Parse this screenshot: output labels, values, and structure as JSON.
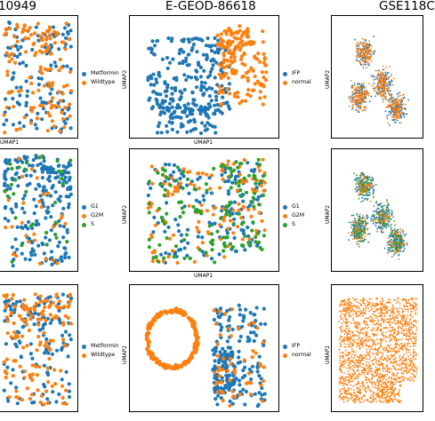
{
  "columns": [
    {
      "title": "10949"
    },
    {
      "title": "E-GEOD-86618"
    },
    {
      "title": "GSE118C"
    }
  ],
  "axis_labels": {
    "x": "UMAP1",
    "y": "UMAP2"
  },
  "colors": {
    "blue": "#1f77b4",
    "orange": "#ff7f0e",
    "green": "#2ca02c"
  },
  "chart_data": [
    {
      "type": "scatter",
      "title": "10949",
      "row": 1,
      "col": 1,
      "xlabel": "UMAP1",
      "ylabel": "",
      "legend": [],
      "shape": "left-blob",
      "series": [
        {
          "name": "Metformin",
          "color": "#1f77b4",
          "count": 130
        },
        {
          "name": "Wildtype",
          "color": "#ff7f0e",
          "count": 130
        }
      ]
    },
    {
      "type": "scatter",
      "title": "E-GEOD-86618",
      "row": 1,
      "col": 2,
      "xlabel": "UMAP1",
      "ylabel": "UMAP2",
      "legend": [
        "IFP",
        "normal"
      ],
      "shape": "two-lobes",
      "series": [
        {
          "name": "IFP",
          "color": "#1f77b4",
          "count": 300
        },
        {
          "name": "normal",
          "color": "#ff7f0e",
          "count": 170
        }
      ]
    },
    {
      "type": "scatter",
      "title": "GSE118C",
      "row": 1,
      "col": 3,
      "xlabel": "",
      "ylabel": "UMAP2",
      "legend": [],
      "shape": "cluster-mix",
      "series": [
        {
          "name": "",
          "color": "#1f77b4",
          "count": 500
        },
        {
          "name": "",
          "color": "#ff7f0e",
          "count": 500
        }
      ]
    },
    {
      "type": "scatter",
      "title": "",
      "row": 2,
      "col": 1,
      "xlabel": "",
      "ylabel": "",
      "legend": [],
      "shape": "left-blob",
      "series": [
        {
          "name": "G1",
          "color": "#1f77b4",
          "count": 220
        },
        {
          "name": "G2M",
          "color": "#ff7f0e",
          "count": 30
        },
        {
          "name": "S",
          "color": "#2ca02c",
          "count": 30
        }
      ]
    },
    {
      "type": "scatter",
      "title": "",
      "row": 2,
      "col": 2,
      "xlabel": "UMAP1",
      "ylabel": "UMAP2",
      "legend": [
        "G1",
        "G2M",
        "S"
      ],
      "shape": "cellcycle",
      "series": [
        {
          "name": "G1",
          "color": "#1f77b4",
          "count": 160
        },
        {
          "name": "G2M",
          "color": "#ff7f0e",
          "count": 130
        },
        {
          "name": "S",
          "color": "#2ca02c",
          "count": 130
        }
      ]
    },
    {
      "type": "scatter",
      "title": "",
      "row": 2,
      "col": 3,
      "xlabel": "",
      "ylabel": "UMAP2",
      "legend": [],
      "shape": "cluster-mix",
      "series": [
        {
          "name": "",
          "color": "#1f77b4",
          "count": 600
        },
        {
          "name": "",
          "color": "#2ca02c",
          "count": 300
        },
        {
          "name": "",
          "color": "#ff7f0e",
          "count": 200
        }
      ]
    },
    {
      "type": "scatter",
      "title": "",
      "row": 3,
      "col": 1,
      "xlabel": "",
      "ylabel": "",
      "legend": [],
      "shape": "left-blob",
      "series": [
        {
          "name": "Metformin",
          "color": "#1f77b4",
          "count": 140
        },
        {
          "name": "Wildtype",
          "color": "#ff7f0e",
          "count": 140
        }
      ]
    },
    {
      "type": "scatter",
      "title": "",
      "row": 3,
      "col": 2,
      "xlabel": "",
      "ylabel": "UMAP2",
      "legend": [
        "IFP",
        "normal"
      ],
      "shape": "ring-tree",
      "series": [
        {
          "name": "IFP",
          "color": "#1f77b4",
          "count": 220
        },
        {
          "name": "normal",
          "color": "#ff7f0e",
          "count": 280
        }
      ]
    },
    {
      "type": "scatter",
      "title": "",
      "row": 3,
      "col": 3,
      "xlabel": "",
      "ylabel": "UMAP2",
      "legend": [],
      "shape": "map",
      "series": [
        {
          "name": "",
          "color": "#ff7f0e",
          "count": 1800
        }
      ]
    }
  ]
}
